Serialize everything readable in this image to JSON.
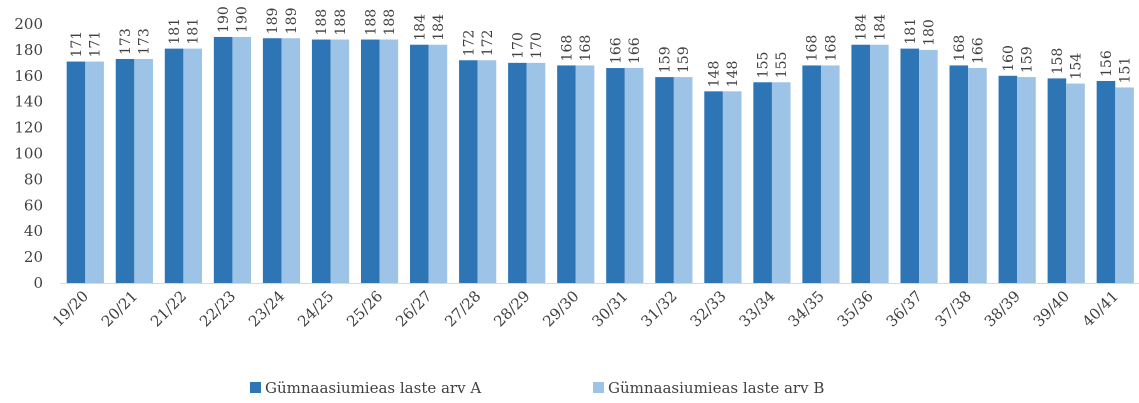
{
  "chart_data": {
    "type": "bar",
    "categories": [
      "19/20",
      "20/21",
      "21/22",
      "22/23",
      "23/24",
      "24/25",
      "25/26",
      "26/27",
      "27/28",
      "28/29",
      "29/30",
      "30/31",
      "31/32",
      "32/33",
      "33/34",
      "34/35",
      "35/36",
      "36/37",
      "37/38",
      "38/39",
      "39/40",
      "40/41"
    ],
    "series": [
      {
        "name": "Gümnaasiumieas laste arv A",
        "color": "#2e75b6",
        "values": [
          171,
          173,
          181,
          190,
          189,
          188,
          188,
          184,
          172,
          170,
          168,
          166,
          159,
          148,
          155,
          168,
          184,
          181,
          168,
          160,
          158,
          156
        ]
      },
      {
        "name": "Gümnaasiumieas laste arv B",
        "color": "#9dc3e6",
        "values": [
          171,
          173,
          181,
          190,
          189,
          188,
          188,
          184,
          172,
          170,
          168,
          166,
          159,
          148,
          155,
          168,
          184,
          180,
          166,
          159,
          154,
          151
        ]
      }
    ],
    "ylim": [
      0,
      200
    ],
    "yticks": [
      0,
      20,
      40,
      60,
      80,
      100,
      120,
      140,
      160,
      180,
      200
    ],
    "grid": false,
    "legend_position": "bottom",
    "title": "",
    "xlabel": "",
    "ylabel": ""
  }
}
